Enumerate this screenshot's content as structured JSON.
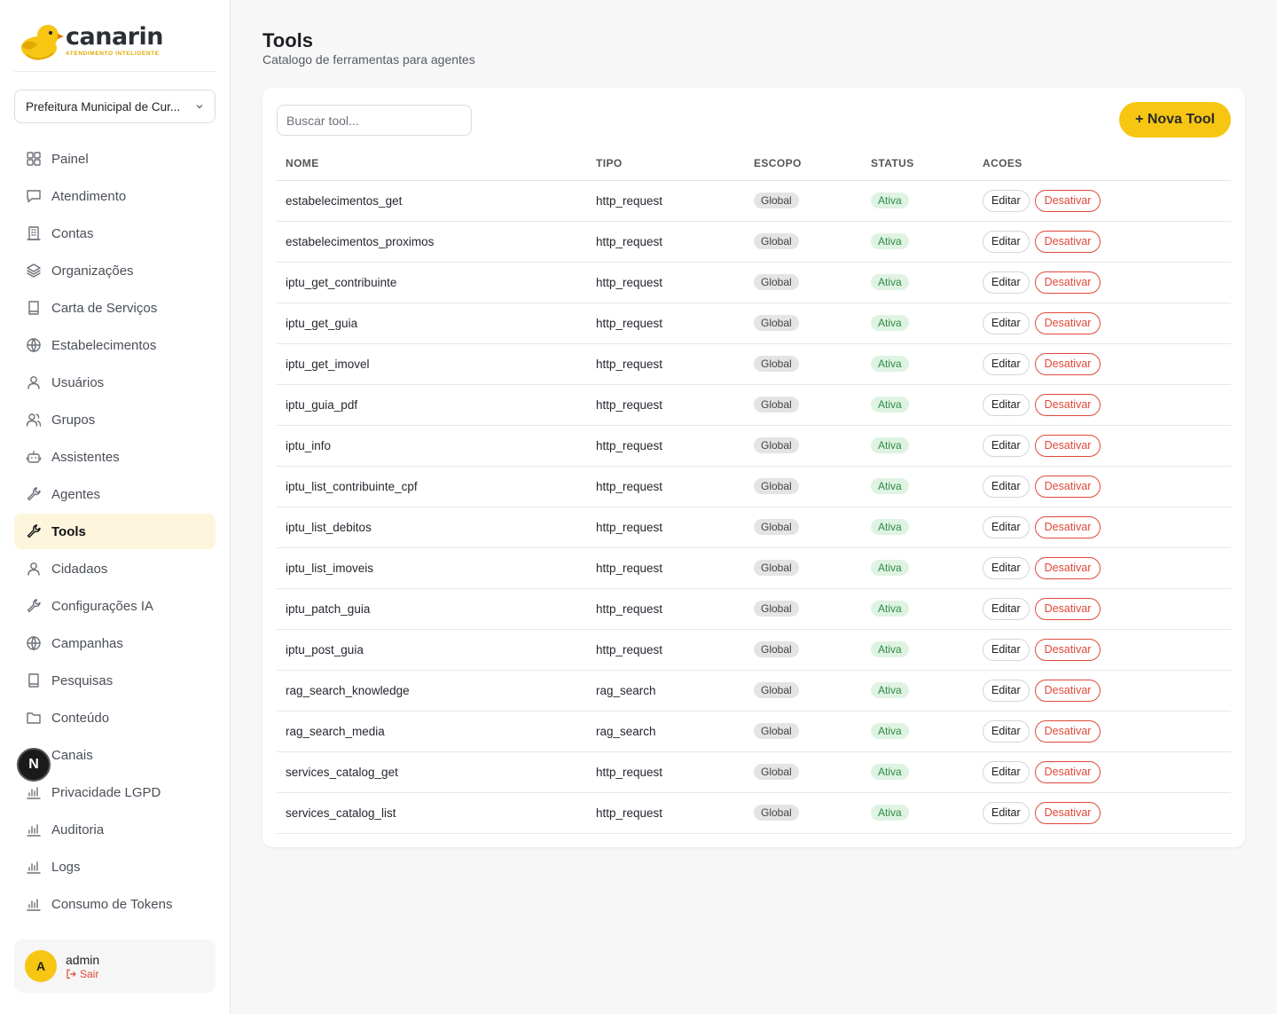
{
  "brand": {
    "name": "canarin",
    "tagline": "ATENDIMENTO INTELIGENTE"
  },
  "org_select": {
    "value": "Prefeitura Municipal de Cur..."
  },
  "nav": [
    {
      "label": "Painel",
      "icon": "grid-icon",
      "active": false
    },
    {
      "label": "Atendimento",
      "icon": "chat-icon",
      "active": false
    },
    {
      "label": "Contas",
      "icon": "building-icon",
      "active": false
    },
    {
      "label": "Organizações",
      "icon": "layers-icon",
      "active": false
    },
    {
      "label": "Carta de Serviços",
      "icon": "book-icon",
      "active": false
    },
    {
      "label": "Estabelecimentos",
      "icon": "globe-icon",
      "active": false
    },
    {
      "label": "Usuários",
      "icon": "user-icon",
      "active": false
    },
    {
      "label": "Grupos",
      "icon": "users-icon",
      "active": false
    },
    {
      "label": "Assistentes",
      "icon": "bot-icon",
      "active": false
    },
    {
      "label": "Agentes",
      "icon": "wrench-icon",
      "active": false
    },
    {
      "label": "Tools",
      "icon": "wrench-icon",
      "active": true
    },
    {
      "label": "Cidadaos",
      "icon": "user-icon",
      "active": false
    },
    {
      "label": "Configurações IA",
      "icon": "wrench-icon",
      "active": false
    },
    {
      "label": "Campanhas",
      "icon": "globe-icon",
      "active": false
    },
    {
      "label": "Pesquisas",
      "icon": "book-icon",
      "active": false
    },
    {
      "label": "Conteúdo",
      "icon": "folder-icon",
      "active": false
    },
    {
      "label": "Canais",
      "icon": "globe-icon",
      "active": false
    },
    {
      "label": "Privacidade LGPD",
      "icon": "bar-chart-icon",
      "active": false
    },
    {
      "label": "Auditoria",
      "icon": "bar-chart-icon",
      "active": false
    },
    {
      "label": "Logs",
      "icon": "bar-chart-icon",
      "active": false
    },
    {
      "label": "Consumo de Tokens",
      "icon": "bar-chart-icon",
      "active": false
    }
  ],
  "user": {
    "initial": "A",
    "name": "admin",
    "logout": "Sair"
  },
  "floating_badge": "N",
  "page": {
    "title": "Tools",
    "subtitle": "Catalogo de ferramentas para agentes"
  },
  "search": {
    "placeholder": "Buscar tool..."
  },
  "new_button": "+ Nova Tool",
  "table": {
    "headers": [
      "NOME",
      "TIPO",
      "ESCOPO",
      "STATUS",
      "ACOES"
    ],
    "edit_label": "Editar",
    "deactivate_label": "Desativar",
    "rows": [
      {
        "name": "estabelecimentos_get",
        "type": "http_request",
        "scope": "Global",
        "status": "Ativa"
      },
      {
        "name": "estabelecimentos_proximos",
        "type": "http_request",
        "scope": "Global",
        "status": "Ativa"
      },
      {
        "name": "iptu_get_contribuinte",
        "type": "http_request",
        "scope": "Global",
        "status": "Ativa"
      },
      {
        "name": "iptu_get_guia",
        "type": "http_request",
        "scope": "Global",
        "status": "Ativa"
      },
      {
        "name": "iptu_get_imovel",
        "type": "http_request",
        "scope": "Global",
        "status": "Ativa"
      },
      {
        "name": "iptu_guia_pdf",
        "type": "http_request",
        "scope": "Global",
        "status": "Ativa"
      },
      {
        "name": "iptu_info",
        "type": "http_request",
        "scope": "Global",
        "status": "Ativa"
      },
      {
        "name": "iptu_list_contribuinte_cpf",
        "type": "http_request",
        "scope": "Global",
        "status": "Ativa"
      },
      {
        "name": "iptu_list_debitos",
        "type": "http_request",
        "scope": "Global",
        "status": "Ativa"
      },
      {
        "name": "iptu_list_imoveis",
        "type": "http_request",
        "scope": "Global",
        "status": "Ativa"
      },
      {
        "name": "iptu_patch_guia",
        "type": "http_request",
        "scope": "Global",
        "status": "Ativa"
      },
      {
        "name": "iptu_post_guia",
        "type": "http_request",
        "scope": "Global",
        "status": "Ativa"
      },
      {
        "name": "rag_search_knowledge",
        "type": "rag_search",
        "scope": "Global",
        "status": "Ativa"
      },
      {
        "name": "rag_search_media",
        "type": "rag_search",
        "scope": "Global",
        "status": "Ativa"
      },
      {
        "name": "services_catalog_get",
        "type": "http_request",
        "scope": "Global",
        "status": "Ativa"
      },
      {
        "name": "services_catalog_list",
        "type": "http_request",
        "scope": "Global",
        "status": "Ativa"
      }
    ]
  },
  "colors": {
    "accent": "#f6c613",
    "active_bg": "#fdf6dd",
    "danger": "#e0483a",
    "success": "#2f8a45"
  }
}
